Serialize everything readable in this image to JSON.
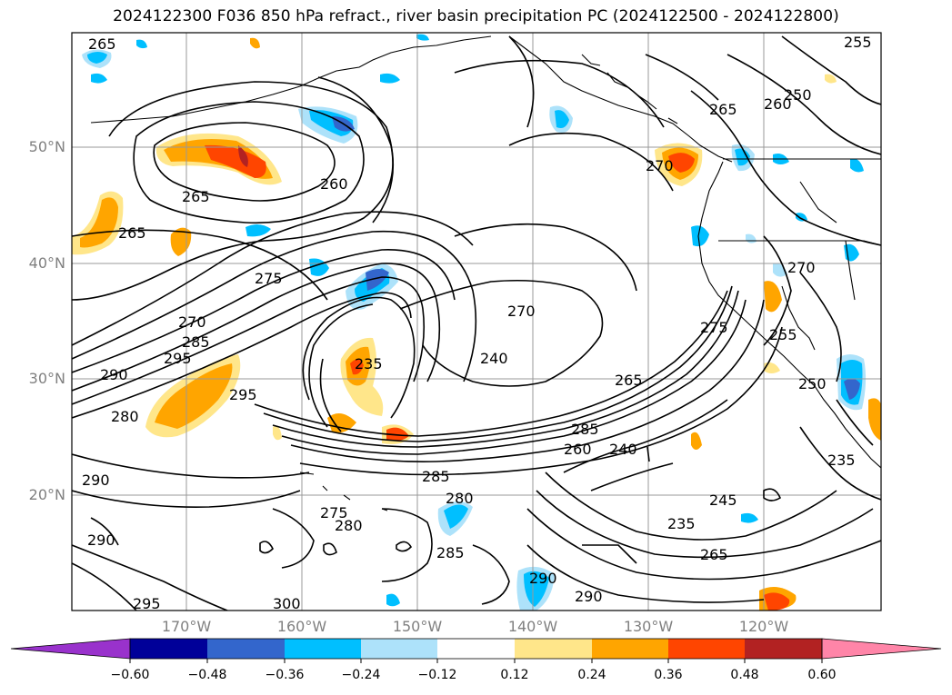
{
  "title": "2024122300 F036 850 hPa refract., river basin precipitation PC (2024122500 - 2024122800)",
  "map": {
    "lat_labels": [
      "50°N",
      "40°N",
      "30°N",
      "20°N"
    ],
    "lon_labels": [
      "170°W",
      "160°W",
      "150°W",
      "140°W",
      "130°W",
      "120°W"
    ],
    "contour_labels": [
      "265",
      "260",
      "265",
      "265",
      "275",
      "270",
      "285",
      "290",
      "295",
      "295",
      "280",
      "290",
      "235",
      "240",
      "270",
      "250",
      "265",
      "260",
      "255",
      "270",
      "275",
      "255",
      "265",
      "285",
      "260",
      "240",
      "285",
      "280",
      "275",
      "280",
      "290",
      "285",
      "290",
      "245",
      "235",
      "265",
      "295",
      "300",
      "290",
      "250",
      "270",
      "235"
    ]
  },
  "colorbar": {
    "ticks": [
      "−0.60",
      "−0.48",
      "−0.36",
      "−0.24",
      "−0.12",
      "0.12",
      "0.24",
      "0.36",
      "0.48",
      "0.60"
    ],
    "colors": [
      "#9932CC",
      "#000099",
      "#3366CC",
      "#00BFFF",
      "#ADE2FA",
      "#FFFFFF",
      "#FFE68A",
      "#FFA500",
      "#FF4500",
      "#B22222",
      "#FF85A8"
    ]
  }
}
